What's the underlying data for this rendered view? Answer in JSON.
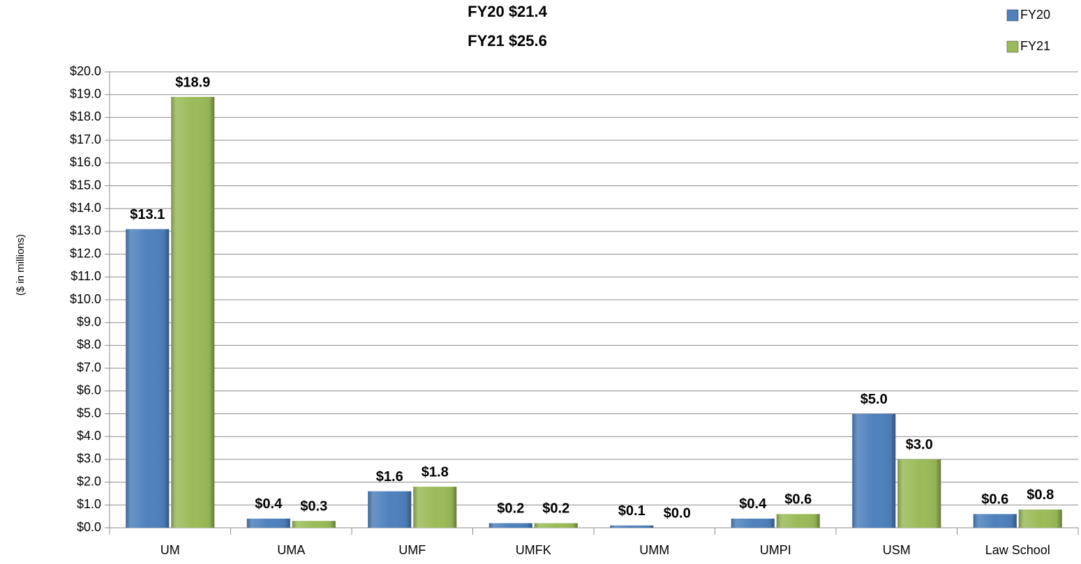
{
  "chart_data": {
    "type": "bar",
    "title": "FY20 $21.4",
    "subtitle": "FY21 $25.6",
    "y_label": "($ in millions)",
    "categories": [
      "UM",
      "UMA",
      "UMF",
      "UMFK",
      "UMM",
      "UMPI",
      "USM",
      "Law School"
    ],
    "series": [
      {
        "name": "FY20",
        "color": "#4f81bd",
        "values": [
          13.1,
          0.4,
          1.6,
          0.2,
          0.1,
          0.4,
          5.0,
          0.6
        ],
        "value_labels": [
          "$13.1",
          "$0.4",
          "$1.6",
          "$0.2",
          "$0.1",
          "$0.4",
          "$5.0",
          "$0.6"
        ]
      },
      {
        "name": "FY21",
        "color": "#9bbb59",
        "values": [
          18.9,
          0.3,
          1.8,
          0.2,
          0.0,
          0.6,
          3.0,
          0.8
        ],
        "value_labels": [
          "$18.9",
          "$0.3",
          "$1.8",
          "$0.2",
          "$0.0",
          "$0.6",
          "$3.0",
          "$0.8"
        ]
      }
    ],
    "ylim": [
      0,
      20
    ],
    "yticks": [
      {
        "value": 0,
        "label": "$0.0"
      },
      {
        "value": 1,
        "label": "$1.0"
      },
      {
        "value": 2,
        "label": "$2.0"
      },
      {
        "value": 3,
        "label": "$3.0"
      },
      {
        "value": 4,
        "label": "$4.0"
      },
      {
        "value": 5,
        "label": "$5.0"
      },
      {
        "value": 6,
        "label": "$6.0"
      },
      {
        "value": 7,
        "label": "$7.0"
      },
      {
        "value": 8,
        "label": "$8.0"
      },
      {
        "value": 9,
        "label": "$9.0"
      },
      {
        "value": 10,
        "label": "$10.0"
      },
      {
        "value": 11,
        "label": "$11.0"
      },
      {
        "value": 12,
        "label": "$12.0"
      },
      {
        "value": 13,
        "label": "$13.0"
      },
      {
        "value": 14,
        "label": "$14.0"
      },
      {
        "value": 15,
        "label": "$15.0"
      },
      {
        "value": 16,
        "label": "$16.0"
      },
      {
        "value": 17,
        "label": "$17.0"
      },
      {
        "value": 18,
        "label": "$18.0"
      },
      {
        "value": 19,
        "label": "$19.0"
      },
      {
        "value": 20,
        "label": "$20.0"
      }
    ],
    "grid": true,
    "legend": "top-right"
  }
}
